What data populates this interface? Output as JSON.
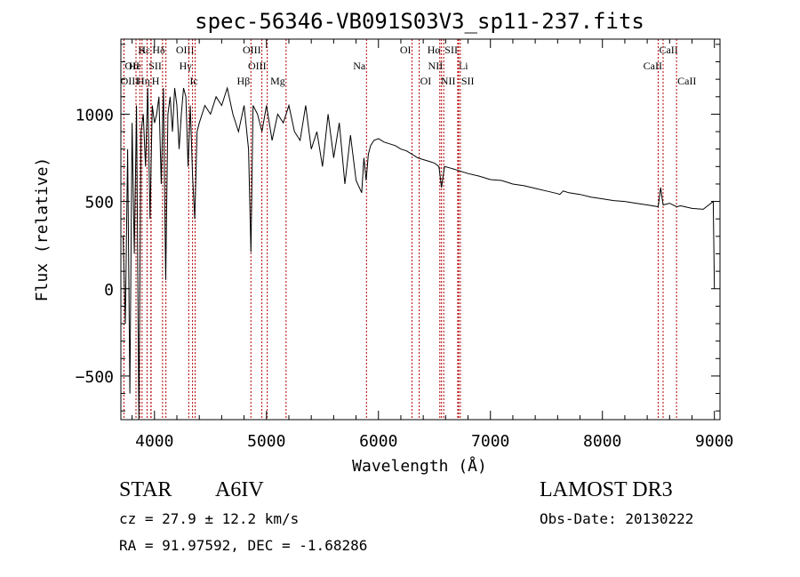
{
  "chart_data": {
    "type": "line",
    "title": "spec-56346-VB091S03V3_sp11-237.fits",
    "xlabel": "Wavelength (Å)",
    "ylabel": "Flux (relative)",
    "xlim": [
      3700,
      9050
    ],
    "ylim": [
      -750,
      1430
    ],
    "x_ticks": [
      4000,
      5000,
      6000,
      7000,
      8000,
      9000
    ],
    "x_tick_labels": [
      "4000",
      "5000",
      "6000",
      "7000",
      "8000",
      "9000"
    ],
    "y_ticks": [
      -500,
      0,
      500,
      1000
    ],
    "y_tick_labels": [
      "−500",
      "0",
      "500",
      "1000"
    ],
    "series": [
      {
        "name": "flux",
        "x": [
          3720,
          3740,
          3760,
          3780,
          3800,
          3820,
          3840,
          3860,
          3880,
          3900,
          3920,
          3940,
          3960,
          3980,
          4000,
          4020,
          4040,
          4060,
          4080,
          4100,
          4120,
          4140,
          4160,
          4180,
          4200,
          4220,
          4240,
          4260,
          4280,
          4300,
          4320,
          4340,
          4360,
          4380,
          4400,
          4450,
          4500,
          4550,
          4600,
          4650,
          4700,
          4750,
          4800,
          4840,
          4861,
          4880,
          4920,
          4960,
          5000,
          5050,
          5100,
          5150,
          5200,
          5250,
          5300,
          5350,
          5400,
          5450,
          5500,
          5550,
          5600,
          5650,
          5700,
          5750,
          5800,
          5850,
          5870,
          5890,
          5910,
          5930,
          5960,
          6000,
          6050,
          6100,
          6150,
          6200,
          6250,
          6300,
          6350,
          6400,
          6450,
          6500,
          6540,
          6563,
          6590,
          6650,
          6700,
          6750,
          6800,
          6900,
          7000,
          7100,
          7200,
          7300,
          7400,
          7500,
          7600,
          7620,
          7650,
          7700,
          7800,
          7900,
          8000,
          8100,
          8200,
          8300,
          8400,
          8498,
          8520,
          8542,
          8600,
          8662,
          8700,
          8800,
          8900,
          8990,
          9000
        ],
        "y": [
          300,
          -200,
          800,
          -600,
          950,
          200,
          1050,
          -750,
          900,
          1000,
          700,
          1150,
          400,
          1050,
          950,
          1000,
          1100,
          600,
          1150,
          50,
          1000,
          1100,
          900,
          1150,
          1050,
          800,
          1000,
          1150,
          1100,
          700,
          1050,
          650,
          400,
          900,
          950,
          1050,
          1000,
          1100,
          1050,
          1150,
          1000,
          900,
          1050,
          800,
          210,
          1050,
          1000,
          900,
          1050,
          850,
          1000,
          950,
          1050,
          900,
          850,
          1050,
          800,
          900,
          700,
          1000,
          750,
          950,
          600,
          880,
          620,
          550,
          750,
          620,
          770,
          820,
          850,
          860,
          840,
          830,
          820,
          800,
          790,
          770,
          750,
          740,
          730,
          720,
          700,
          580,
          700,
          690,
          680,
          670,
          660,
          645,
          625,
          620,
          600,
          590,
          575,
          560,
          545,
          540,
          560,
          550,
          540,
          525,
          515,
          505,
          500,
          490,
          480,
          470,
          580,
          480,
          490,
          470,
          475,
          460,
          455,
          500,
          0
        ]
      }
    ],
    "line_markers": [
      {
        "label": "Hε",
        "x": 3970,
        "row": 0,
        "side": "left"
      },
      {
        "label": "K",
        "x": 3934,
        "row": 0,
        "side": "left"
      },
      {
        "label": "Hδ",
        "x": 4102,
        "row": 0,
        "side": "left"
      },
      {
        "label": "OIII",
        "x": 4363,
        "row": 0,
        "side": "left"
      },
      {
        "label": "OIII",
        "x": 4959,
        "row": 0,
        "side": "left"
      },
      {
        "label": "OI",
        "x": 6300,
        "row": 0,
        "side": "left"
      },
      {
        "label": "Hα",
        "x": 6563,
        "row": 0,
        "side": "left"
      },
      {
        "label": "SII",
        "x": 6716,
        "row": 0,
        "side": "left"
      },
      {
        "label": "CaII",
        "x": 8498,
        "row": 0,
        "side": "right"
      },
      {
        "label": "OII",
        "x": 3727,
        "row": 1,
        "side": "right"
      },
      {
        "label": "He",
        "x": 3889,
        "row": 1,
        "side": "left"
      },
      {
        "label": "SII",
        "x": 4072,
        "row": 1,
        "side": "left"
      },
      {
        "label": "Hγ",
        "x": 4340,
        "row": 1,
        "side": "left"
      },
      {
        "label": "OIII",
        "x": 5007,
        "row": 1,
        "side": "left"
      },
      {
        "label": "Na",
        "x": 5893,
        "row": 1,
        "side": "left"
      },
      {
        "label": "NII",
        "x": 6583,
        "row": 1,
        "side": "left"
      },
      {
        "label": "Li",
        "x": 6708,
        "row": 1,
        "side": "right"
      },
      {
        "label": "CaII",
        "x": 8542,
        "row": 1,
        "side": "left"
      },
      {
        "label": "OIII",
        "x": 3869,
        "row": 2,
        "side": "left"
      },
      {
        "label": "Hη",
        "x": 3835,
        "row": 2,
        "side": "right"
      },
      {
        "label": "H",
        "x": 3968,
        "row": 2,
        "side": "right"
      },
      {
        "label": "Ic",
        "x": 4306,
        "row": 2,
        "side": "right"
      },
      {
        "label": "Hβ",
        "x": 4861,
        "row": 2,
        "side": "left"
      },
      {
        "label": "Mg",
        "x": 5175,
        "row": 2,
        "side": "left"
      },
      {
        "label": "OI",
        "x": 6364,
        "row": 2,
        "side": "right"
      },
      {
        "label": "NII",
        "x": 6548,
        "row": 2,
        "side": "right"
      },
      {
        "label": "SII",
        "x": 6731,
        "row": 2,
        "side": "right"
      },
      {
        "label": "CaII",
        "x": 8662,
        "row": 2,
        "side": "right"
      }
    ]
  },
  "footer": {
    "object_class": "STAR",
    "subclass": "A6IV",
    "survey": "LAMOST DR3",
    "redshift": "cz = 27.9 ± 12.2 km/s",
    "obs_date": "Obs-Date: 20130222",
    "coords": "RA =  91.97592, DEC =  -1.68286"
  }
}
